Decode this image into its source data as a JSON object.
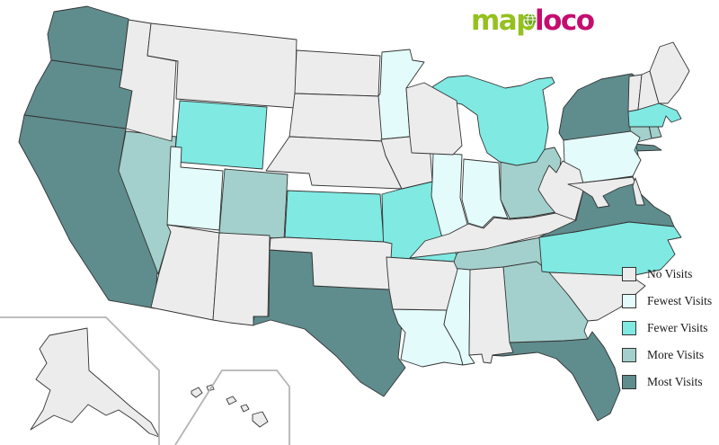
{
  "logo": {
    "text_map": "ma",
    "text_p": "p",
    "text_loco": "loco",
    "color_map": "#94c11f",
    "color_loco": "#c40d6e",
    "globe_fill": "#6fa71d",
    "globe_lines": "#ffffff"
  },
  "legend": {
    "items": [
      {
        "key": "none",
        "label": "No Visits",
        "color": "#ececec"
      },
      {
        "key": "fewest",
        "label": "Fewest Visits",
        "color": "#e3fbfa"
      },
      {
        "key": "fewer",
        "label": "Fewer Visits",
        "color": "#7fe9e2"
      },
      {
        "key": "more",
        "label": "More Visits",
        "color": "#a3d0cc"
      },
      {
        "key": "most",
        "label": "Most Visits",
        "color": "#5f8c8d"
      }
    ]
  },
  "map": {
    "border_color": "#333333",
    "inset_border_color": "#b4b4b4",
    "states": [
      {
        "id": "WA",
        "name": "Washington",
        "category": "most"
      },
      {
        "id": "OR",
        "name": "Oregon",
        "category": "most"
      },
      {
        "id": "CA",
        "name": "California",
        "category": "most"
      },
      {
        "id": "TX",
        "name": "Texas",
        "category": "most"
      },
      {
        "id": "FL",
        "name": "Florida",
        "category": "most"
      },
      {
        "id": "NY",
        "name": "New York",
        "category": "most"
      },
      {
        "id": "VA",
        "name": "Virginia",
        "category": "most"
      },
      {
        "id": "NV",
        "name": "Nevada",
        "category": "more"
      },
      {
        "id": "CO",
        "name": "Colorado",
        "category": "more"
      },
      {
        "id": "OH",
        "name": "Ohio",
        "category": "more"
      },
      {
        "id": "TN",
        "name": "Tennessee",
        "category": "more"
      },
      {
        "id": "GA",
        "name": "Georgia",
        "category": "more"
      },
      {
        "id": "CT",
        "name": "Connecticut",
        "category": "more"
      },
      {
        "id": "RI",
        "name": "Rhode Island",
        "category": "more"
      },
      {
        "id": "WY",
        "name": "Wyoming",
        "category": "fewer"
      },
      {
        "id": "KS",
        "name": "Kansas",
        "category": "fewer"
      },
      {
        "id": "MO",
        "name": "Missouri",
        "category": "fewer"
      },
      {
        "id": "MI",
        "name": "Michigan",
        "category": "fewer"
      },
      {
        "id": "NC",
        "name": "North Carolina",
        "category": "fewer"
      },
      {
        "id": "MA",
        "name": "Massachusetts",
        "category": "fewer"
      },
      {
        "id": "NJ",
        "name": "New Jersey",
        "category": "fewer"
      },
      {
        "id": "UT",
        "name": "Utah",
        "category": "fewest"
      },
      {
        "id": "MN",
        "name": "Minnesota",
        "category": "fewest"
      },
      {
        "id": "IL",
        "name": "Illinois",
        "category": "fewest"
      },
      {
        "id": "IN",
        "name": "Indiana",
        "category": "fewest"
      },
      {
        "id": "PA",
        "name": "Pennsylvania",
        "category": "fewest"
      },
      {
        "id": "LA",
        "name": "Louisiana",
        "category": "fewest"
      },
      {
        "id": "MS",
        "name": "Mississippi",
        "category": "fewest"
      },
      {
        "id": "ID",
        "name": "Idaho",
        "category": "none"
      },
      {
        "id": "MT",
        "name": "Montana",
        "category": "none"
      },
      {
        "id": "ND",
        "name": "North Dakota",
        "category": "none"
      },
      {
        "id": "SD",
        "name": "South Dakota",
        "category": "none"
      },
      {
        "id": "NE",
        "name": "Nebraska",
        "category": "none"
      },
      {
        "id": "OK",
        "name": "Oklahoma",
        "category": "none"
      },
      {
        "id": "AZ",
        "name": "Arizona",
        "category": "none"
      },
      {
        "id": "NM",
        "name": "New Mexico",
        "category": "none"
      },
      {
        "id": "IA",
        "name": "Iowa",
        "category": "none"
      },
      {
        "id": "WI",
        "name": "Wisconsin",
        "category": "none"
      },
      {
        "id": "KY",
        "name": "Kentucky",
        "category": "none"
      },
      {
        "id": "AR",
        "name": "Arkansas",
        "category": "none"
      },
      {
        "id": "AL",
        "name": "Alabama",
        "category": "none"
      },
      {
        "id": "SC",
        "name": "South Carolina",
        "category": "none"
      },
      {
        "id": "WV",
        "name": "West Virginia",
        "category": "none"
      },
      {
        "id": "MD",
        "name": "Maryland",
        "category": "none"
      },
      {
        "id": "DE",
        "name": "Delaware",
        "category": "none"
      },
      {
        "id": "VT",
        "name": "Vermont",
        "category": "none"
      },
      {
        "id": "NH",
        "name": "New Hampshire",
        "category": "none"
      },
      {
        "id": "ME",
        "name": "Maine",
        "category": "none"
      },
      {
        "id": "AK",
        "name": "Alaska",
        "category": "none"
      },
      {
        "id": "HI",
        "name": "Hawaii",
        "category": "none"
      }
    ]
  }
}
